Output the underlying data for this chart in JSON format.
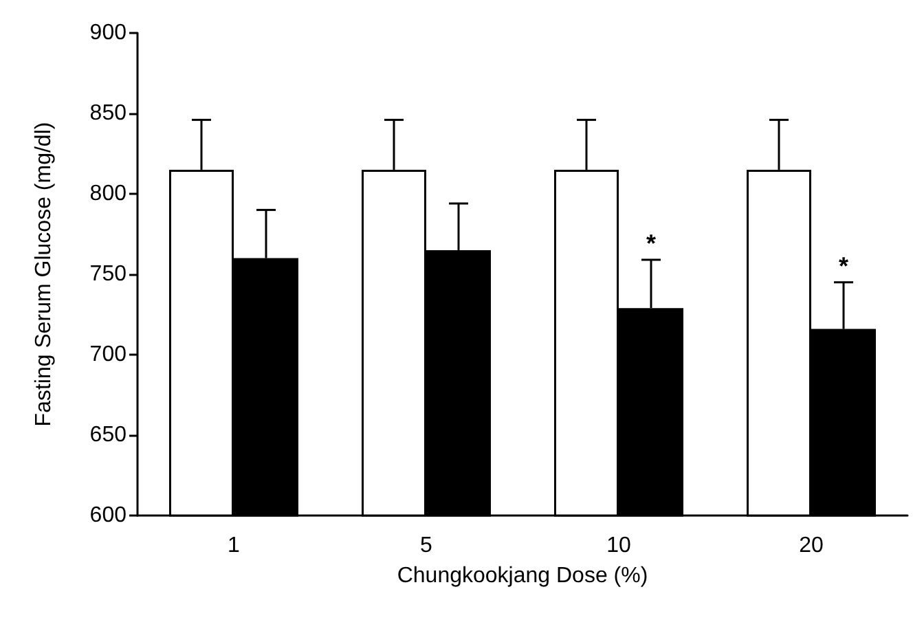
{
  "chart_data": {
    "type": "bar",
    "xlabel": "Chungkookjang Dose (%)",
    "ylabel": "Fasting Serum Glucose (mg/dl)",
    "categories": [
      "1",
      "5",
      "10",
      "20"
    ],
    "series": [
      {
        "color": "#ffffff",
        "values": [
          815,
          815,
          815,
          815
        ],
        "errors": [
          [
            815,
            846
          ],
          [
            815,
            846
          ],
          [
            815,
            846
          ],
          [
            815,
            846
          ]
        ]
      },
      {
        "color": "#000000",
        "values": [
          760,
          765,
          729,
          716
        ],
        "errors": [
          [
            760,
            790
          ],
          [
            765,
            794
          ],
          [
            729,
            759
          ],
          [
            716,
            745
          ]
        ]
      }
    ],
    "ylim": [
      600,
      900
    ],
    "yticks": [
      600,
      650,
      700,
      750,
      800,
      850,
      900
    ],
    "annotations": [
      {
        "text": "*",
        "x": "10",
        "y": 759
      },
      {
        "text": "*",
        "x": "20",
        "y": 745
      }
    ]
  }
}
